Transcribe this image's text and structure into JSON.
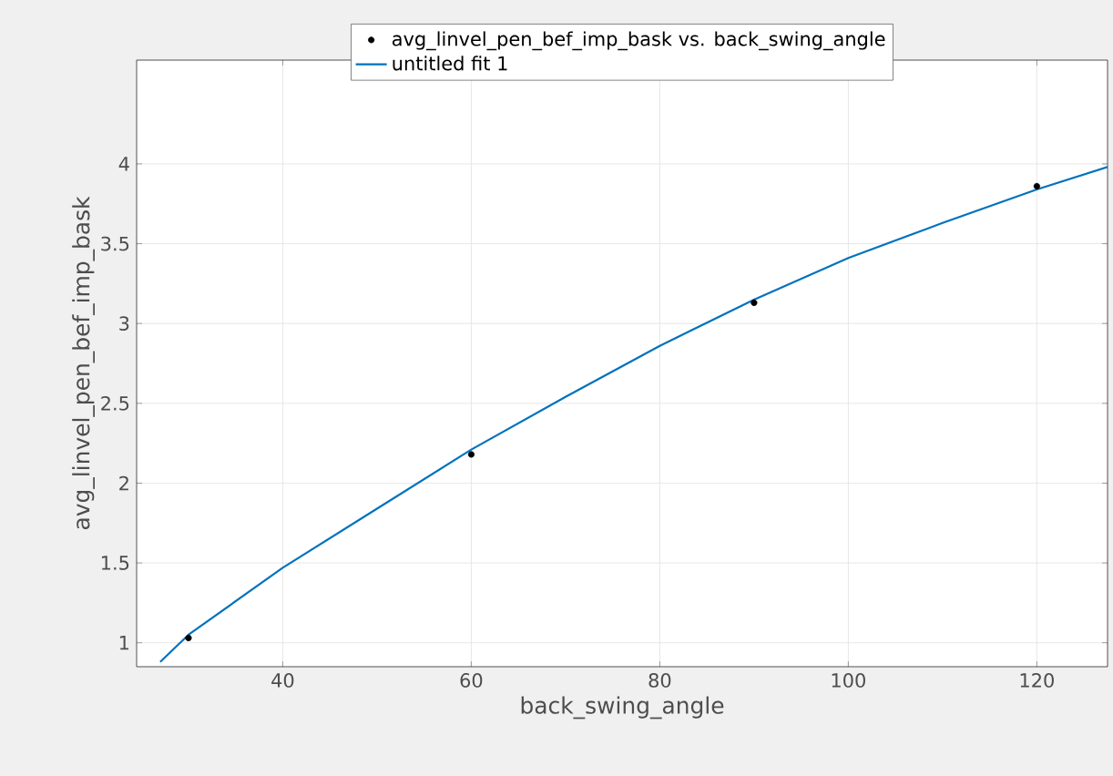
{
  "chart_data": {
    "type": "scatter",
    "xlabel": "back_swing_angle",
    "ylabel": "avg_linvel_pen_bef_imp_bask",
    "xlim": [
      24.5,
      127.5
    ],
    "ylim": [
      0.85,
      4.65
    ],
    "xticks": [
      40,
      60,
      80,
      100,
      120
    ],
    "yticks": [
      1,
      1.5,
      2,
      2.5,
      3,
      3.5,
      4
    ],
    "grid": true,
    "legend": "top",
    "series": [
      {
        "name": "avg_linvel_pen_bef_imp_bask vs. back_swing_angle",
        "marker": "circle",
        "color": "#000000",
        "x": [
          30,
          60,
          90,
          120
        ],
        "values": [
          1.03,
          2.18,
          3.13,
          3.86
        ]
      },
      {
        "name": "untitled fit 1",
        "type": "line",
        "marker": "none",
        "color": "#0072bd",
        "x": [
          27,
          30,
          40,
          50,
          60,
          70,
          80,
          90,
          100,
          110,
          120,
          127.5
        ],
        "values": [
          0.88,
          1.05,
          1.47,
          1.84,
          2.21,
          2.54,
          2.86,
          3.15,
          3.41,
          3.63,
          3.84,
          3.98
        ]
      }
    ]
  }
}
